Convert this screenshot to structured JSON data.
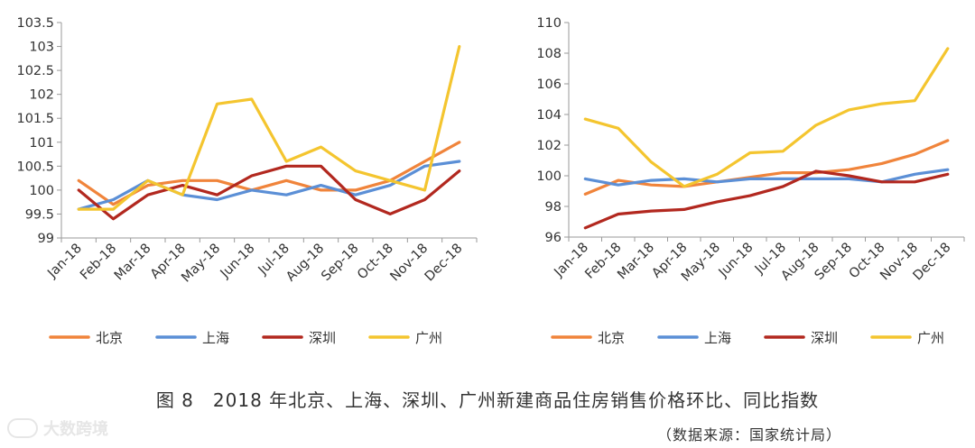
{
  "caption": "图 8　2018 年北京、上海、深圳、广州新建商品住房销售价格环比、同比指数",
  "source": "（数据来源：国家统计局）",
  "watermark": "大数跨境",
  "chart_data": [
    {
      "type": "line",
      "x": [
        "Jan-18",
        "Feb-18",
        "Mar-18",
        "Apr-18",
        "May-18",
        "Jun-18",
        "Jul-18",
        "Aug-18",
        "Sep-18",
        "Oct-18",
        "Nov-18",
        "Dec-18"
      ],
      "ylim": [
        99,
        103.5
      ],
      "yticks": [
        "99",
        "99.5",
        "100",
        "100.5",
        "101",
        "101.5",
        "102",
        "102.5",
        "103",
        "103.5"
      ],
      "legend_position": "bottom",
      "series": [
        {
          "name": "北京",
          "color": "#F0843B",
          "values": [
            100.2,
            99.7,
            100.1,
            100.2,
            100.2,
            100.0,
            100.2,
            100.0,
            100.0,
            100.2,
            100.6,
            101.0
          ]
        },
        {
          "name": "上海",
          "color": "#5B8FD6",
          "values": [
            99.6,
            99.8,
            100.2,
            99.9,
            99.8,
            100.0,
            99.9,
            100.1,
            99.9,
            100.1,
            100.5,
            100.6
          ]
        },
        {
          "name": "深圳",
          "color": "#B2281F",
          "values": [
            100.0,
            99.4,
            99.9,
            100.1,
            99.9,
            100.3,
            100.5,
            100.5,
            99.8,
            99.5,
            99.8,
            100.4
          ]
        },
        {
          "name": "广州",
          "color": "#F4C52F",
          "values": [
            99.6,
            99.6,
            100.2,
            99.9,
            101.8,
            101.9,
            100.6,
            100.9,
            100.4,
            100.2,
            100.0,
            103.0
          ]
        }
      ]
    },
    {
      "type": "line",
      "x": [
        "Jan-18",
        "Feb-18",
        "Mar-18",
        "Apr-18",
        "May-18",
        "Jun-18",
        "Jul-18",
        "Aug-18",
        "Sep-18",
        "Oct-18",
        "Nov-18",
        "Dec-18"
      ],
      "ylim": [
        96,
        110
      ],
      "yticks": [
        "96",
        "98",
        "100",
        "102",
        "104",
        "106",
        "108",
        "110"
      ],
      "legend_position": "bottom",
      "series": [
        {
          "name": "北京",
          "color": "#F0843B",
          "values": [
            98.8,
            99.7,
            99.4,
            99.3,
            99.6,
            99.9,
            100.2,
            100.2,
            100.4,
            100.8,
            101.4,
            102.3
          ]
        },
        {
          "name": "上海",
          "color": "#5B8FD6",
          "values": [
            99.8,
            99.4,
            99.7,
            99.8,
            99.6,
            99.8,
            99.8,
            99.8,
            99.8,
            99.6,
            100.1,
            100.4
          ]
        },
        {
          "name": "深圳",
          "color": "#B2281F",
          "values": [
            96.6,
            97.5,
            97.7,
            97.8,
            98.3,
            98.7,
            99.3,
            100.3,
            100.0,
            99.6,
            99.6,
            100.1
          ]
        },
        {
          "name": "广州",
          "color": "#F4C52F",
          "values": [
            103.7,
            103.1,
            100.9,
            99.3,
            100.1,
            101.5,
            101.6,
            103.3,
            104.3,
            104.7,
            104.9,
            108.3
          ]
        }
      ]
    }
  ]
}
